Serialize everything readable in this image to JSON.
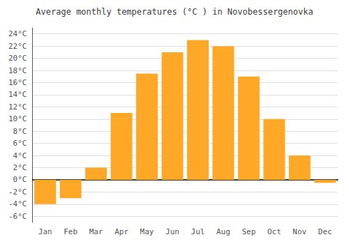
{
  "chart_data": {
    "type": "bar",
    "title": "Average monthly temperatures (°C ) in Novobessergenovka",
    "categories": [
      "Jan",
      "Feb",
      "Mar",
      "Apr",
      "May",
      "Jun",
      "Jul",
      "Aug",
      "Sep",
      "Oct",
      "Nov",
      "Dec"
    ],
    "values": [
      -4,
      -3,
      2,
      11,
      17.5,
      21,
      23,
      22,
      17,
      10,
      4,
      -0.5
    ],
    "color": "#FFA726",
    "ylim": [
      -7,
      25
    ],
    "yticks": [
      {
        "value": -6,
        "label": "-6°C"
      },
      {
        "value": -4,
        "label": "-4°C"
      },
      {
        "value": -2,
        "label": "-2°C"
      },
      {
        "value": 0,
        "label": "0°C"
      },
      {
        "value": 2,
        "label": "2°C"
      },
      {
        "value": 4,
        "label": "4°C"
      },
      {
        "value": 6,
        "label": "6°C"
      },
      {
        "value": 8,
        "label": "8°C"
      },
      {
        "value": 10,
        "label": "10°C"
      },
      {
        "value": 12,
        "label": "12°C"
      },
      {
        "value": 14,
        "label": "14°C"
      },
      {
        "value": 16,
        "label": "16°C"
      },
      {
        "value": 18,
        "label": "18°C"
      },
      {
        "value": 20,
        "label": "20°C"
      },
      {
        "value": 22,
        "label": "22°C"
      },
      {
        "value": 24,
        "label": "24°C"
      }
    ],
    "grid": true
  }
}
